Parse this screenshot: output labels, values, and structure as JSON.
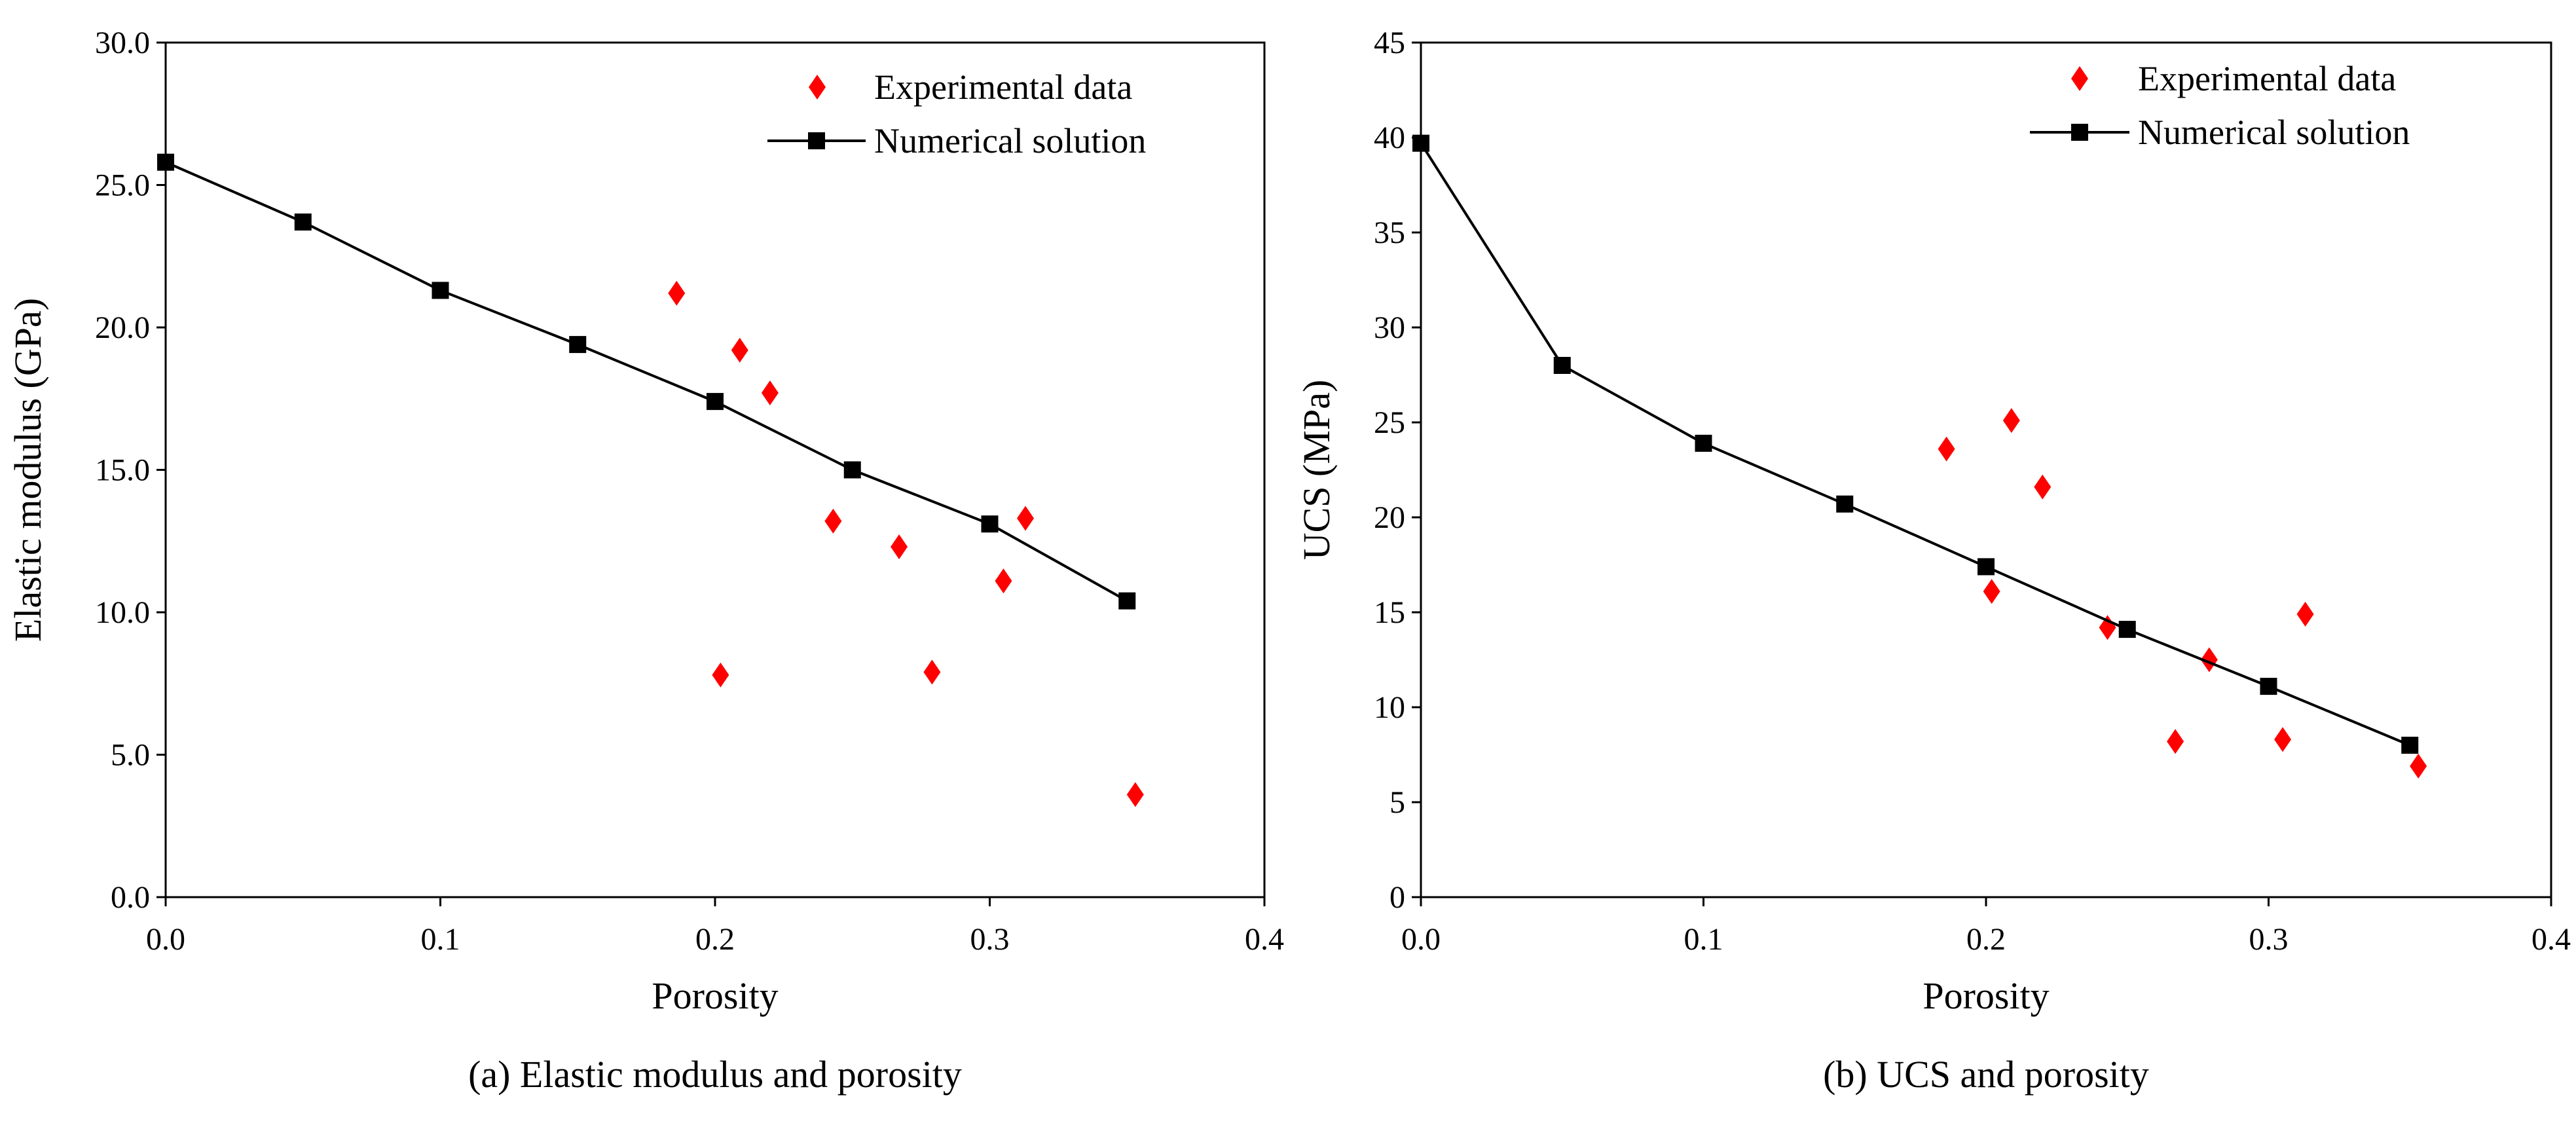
{
  "chart_data": [
    {
      "type": "scatter+line",
      "caption": "(a) Elastic modulus and porosity",
      "xlabel": "Porosity",
      "ylabel": "Elastic modulus (GPa)",
      "xlim": [
        0,
        0.4
      ],
      "ylim": [
        0,
        30
      ],
      "xticks": [
        "0.0",
        "0.1",
        "0.2",
        "0.3",
        "0.4"
      ],
      "yticks": [
        "0.0",
        "5.0",
        "10.0",
        "15.0",
        "20.0",
        "25.0",
        "30.0"
      ],
      "legend_position": "top-right",
      "series": [
        {
          "name": "Experimental data",
          "kind": "scatter",
          "marker": "diamond",
          "color": "#ff0000",
          "x": [
            0.186,
            0.202,
            0.209,
            0.22,
            0.243,
            0.267,
            0.279,
            0.305,
            0.313,
            0.353
          ],
          "y": [
            21.2,
            7.8,
            19.2,
            17.7,
            13.2,
            12.3,
            7.9,
            11.1,
            13.3,
            3.6
          ]
        },
        {
          "name": "Numerical solution",
          "kind": "line",
          "marker": "square",
          "color": "#000000",
          "x": [
            0,
            0.05,
            0.1,
            0.15,
            0.2,
            0.25,
            0.3,
            0.35
          ],
          "y": [
            25.8,
            23.7,
            21.3,
            19.4,
            17.4,
            15.0,
            13.1,
            10.4
          ]
        }
      ]
    },
    {
      "type": "scatter+line",
      "caption": "(b) UCS and porosity",
      "xlabel": "Porosity",
      "ylabel": "UCS (MPa)",
      "xlim": [
        0,
        0.4
      ],
      "ylim": [
        0,
        45
      ],
      "xticks": [
        "0.0",
        "0.1",
        "0.2",
        "0.3",
        "0.4"
      ],
      "yticks": [
        "0",
        "5",
        "10",
        "15",
        "20",
        "25",
        "30",
        "35",
        "40",
        "45"
      ],
      "legend_position": "top-right",
      "series": [
        {
          "name": "Experimental data",
          "kind": "scatter",
          "marker": "diamond",
          "color": "#ff0000",
          "x": [
            0.186,
            0.202,
            0.209,
            0.22,
            0.243,
            0.267,
            0.279,
            0.305,
            0.313,
            0.353
          ],
          "y": [
            23.6,
            16.1,
            25.1,
            21.6,
            14.2,
            8.2,
            12.5,
            8.3,
            14.9,
            6.9
          ]
        },
        {
          "name": "Numerical solution",
          "kind": "line",
          "marker": "square",
          "color": "#000000",
          "x": [
            0,
            0.05,
            0.1,
            0.15,
            0.2,
            0.25,
            0.3,
            0.35
          ],
          "y": [
            39.7,
            28.0,
            23.9,
            20.7,
            17.4,
            14.1,
            11.1,
            8.0
          ]
        }
      ]
    }
  ]
}
